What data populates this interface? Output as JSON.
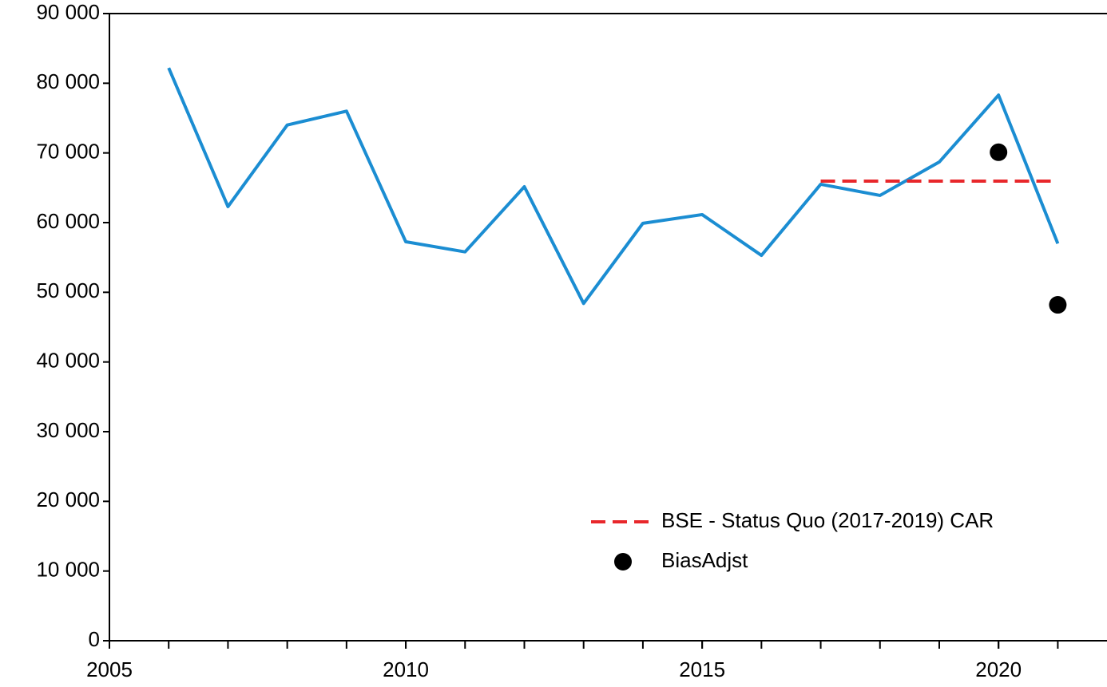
{
  "chart_data": {
    "type": "line",
    "x": [
      2006,
      2007,
      2008,
      2009,
      2010,
      2011,
      2012,
      2013,
      2014,
      2015,
      2016,
      2017,
      2018,
      2019,
      2020,
      2021
    ],
    "series": [
      {
        "color": "#1b8dd2",
        "style": "solid",
        "marker": "none",
        "x": [
          2006,
          2007,
          2008,
          2009,
          2010,
          2011,
          2012,
          2013,
          2014,
          2015,
          2016,
          2017,
          2018,
          2019,
          2020,
          2021
        ],
        "values": [
          82200,
          62300,
          74000,
          76000,
          57250,
          55800,
          65150,
          48400,
          59900,
          61150,
          55300,
          65500,
          63900,
          68700,
          78300,
          57000
        ]
      },
      {
        "name": "BSE - Status Quo (2017-2019) CAR",
        "color": "#e8272b",
        "style": "dashed",
        "marker": "none",
        "x": [
          2017,
          2018,
          2019,
          2020,
          2021
        ],
        "values": [
          65950,
          65950,
          65950,
          65950,
          65950
        ]
      },
      {
        "name": "BiasAdjst",
        "color": "#000000",
        "style": "none",
        "marker": "circle",
        "x": [
          2020,
          2021
        ],
        "values": [
          70100,
          48200
        ]
      }
    ],
    "xlim": [
      2005,
      2021.83
    ],
    "xticks": [
      2005,
      2010,
      2015,
      2020
    ],
    "xminor_ticks": [
      2006,
      2007,
      2008,
      2009,
      2010,
      2011,
      2012,
      2013,
      2014,
      2015,
      2016,
      2017,
      2018,
      2019,
      2020,
      2021
    ],
    "ylim": [
      0,
      90000
    ],
    "yticks": [
      0,
      {
        "value": 10000,
        "label": "10 000"
      },
      {
        "value": 20000,
        "label": "20 000"
      },
      {
        "value": 30000,
        "label": "30 000"
      },
      {
        "value": 40000,
        "label": "40 000"
      },
      {
        "value": 50000,
        "label": "50 000"
      },
      {
        "value": 60000,
        "label": "60 000"
      },
      {
        "value": 70000,
        "label": "70 000"
      },
      {
        "value": 80000,
        "label": "80 000"
      },
      {
        "value": 90000,
        "label": "90 000"
      }
    ],
    "grid": false,
    "legend": "lower-right"
  }
}
